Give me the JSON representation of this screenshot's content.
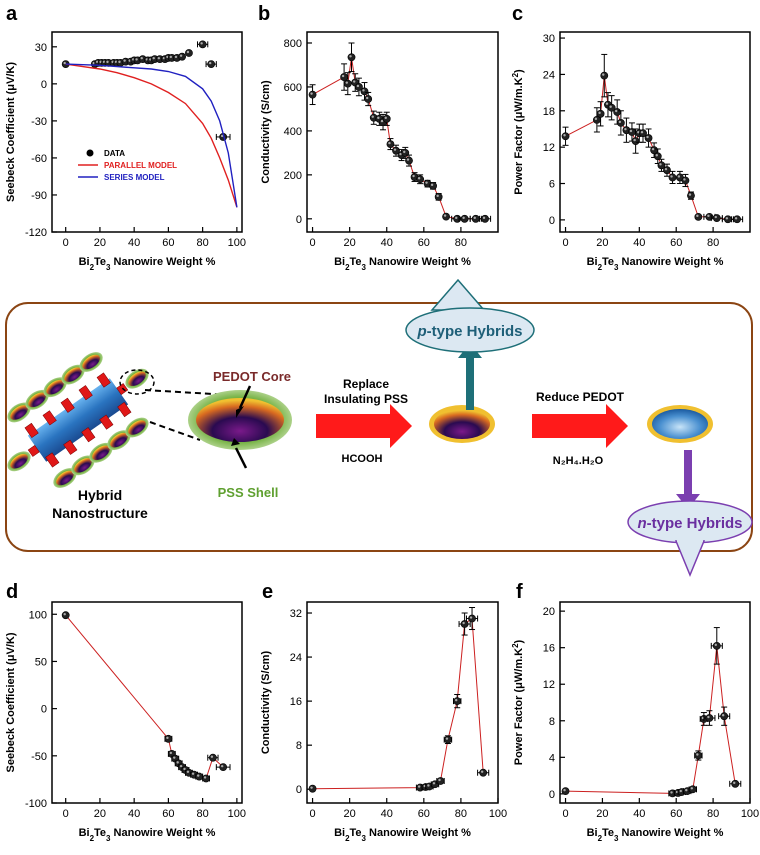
{
  "panel_letters": [
    "a",
    "b",
    "c",
    "d",
    "e",
    "f"
  ],
  "diagram": {
    "pedot_core": "PEDOT Core",
    "pss_shell": "PSS Shell",
    "hybrid_line1": "Hybrid",
    "hybrid_line2": "Nanostructure",
    "replace_line1": "Replace",
    "replace_line2": "Insulating PSS",
    "hcooh": "HCOOH",
    "reduce": "Reduce PEDOT",
    "n2h4": "N₂H₄.H₂O",
    "p_type_prefix": "p",
    "p_type_rest": "-type Hybrids",
    "n_type_prefix": "n",
    "n_type_rest": "-type Hybrids",
    "colors": {
      "frame": "#8B4513",
      "arrow_red": "#FF1A1A",
      "p_arrow": "#1E6F78",
      "n_arrow": "#7B3FB0",
      "bubble_fill": "#DCE8F2",
      "p_text": "#1E5F78",
      "n_text": "#6A2FA0",
      "core_label": "#7A2A2A",
      "shell_label": "#5FA030"
    }
  },
  "chart_data": [
    {
      "id": "a",
      "type": "scatter",
      "ylabel_parts": [
        "Seebeck Coefficient (μV/K)"
      ],
      "xlabel_parts": [
        "Bi",
        "2",
        "Te",
        "3",
        " Nanowire Weight %"
      ],
      "xlim": [
        -8,
        103
      ],
      "ylim": [
        -120,
        42
      ],
      "xticks": [
        0,
        20,
        40,
        60,
        80,
        100
      ],
      "yticks": [
        -120,
        -90,
        -60,
        -30,
        0,
        30
      ],
      "series": [
        {
          "name": "DATA",
          "style": "points",
          "color": "#000000",
          "x": [
            0,
            17,
            19,
            21,
            23,
            25,
            28,
            30,
            32,
            35,
            38,
            40,
            42,
            45,
            48,
            50,
            52,
            55,
            58,
            60,
            62,
            65,
            68,
            72,
            80,
            85,
            92
          ],
          "y": [
            16,
            16,
            17,
            17,
            17,
            17,
            17,
            17,
            17,
            18,
            18,
            19,
            19,
            20,
            19,
            19,
            20,
            20,
            20,
            21,
            21,
            21,
            22,
            25,
            32,
            16,
            -43
          ],
          "xerr": [
            0,
            0,
            0,
            0,
            0,
            0,
            0,
            0,
            0,
            0,
            0,
            0,
            0,
            0,
            0,
            0,
            0,
            0,
            0,
            0,
            0,
            0,
            0,
            0,
            3,
            3,
            4
          ]
        },
        {
          "name": "PARALLEL MODEL",
          "style": "curve",
          "color": "#E02020",
          "x": [
            0,
            10,
            20,
            30,
            40,
            50,
            60,
            70,
            80,
            85,
            90,
            95,
            100
          ],
          "y": [
            16,
            14,
            12,
            9,
            5,
            0,
            -7,
            -16,
            -32,
            -44,
            -60,
            -78,
            -100
          ]
        },
        {
          "name": "SERIES MODEL",
          "style": "curve",
          "color": "#2020C0",
          "x": [
            0,
            10,
            20,
            30,
            40,
            50,
            60,
            70,
            80,
            85,
            90,
            95,
            100
          ],
          "y": [
            16,
            15.5,
            15,
            14,
            13,
            12,
            10,
            6,
            -4,
            -14,
            -30,
            -56,
            -100
          ]
        }
      ],
      "legend_colors": [
        "#E02020",
        "#2020C0"
      ]
    },
    {
      "id": "b",
      "type": "line",
      "ylabel_parts": [
        "Conductivity (S/cm)"
      ],
      "xlabel_parts": [
        "Bi",
        "2",
        "Te",
        "3",
        " Nanowire Weight %"
      ],
      "xlim": [
        -3,
        100
      ],
      "ylim": [
        -60,
        850
      ],
      "xticks": [
        0,
        20,
        40,
        60,
        80
      ],
      "yticks": [
        0,
        200,
        400,
        600,
        800
      ],
      "series": [
        {
          "style": "line-points",
          "color": "#CC2020",
          "x": [
            0,
            17,
            19,
            21,
            23,
            25,
            28,
            30,
            33,
            36,
            38,
            40,
            42,
            45,
            48,
            50,
            52,
            55,
            58,
            62,
            65,
            68,
            72,
            78,
            82,
            88,
            93
          ],
          "y": [
            565,
            645,
            615,
            735,
            620,
            600,
            580,
            545,
            460,
            455,
            440,
            455,
            340,
            310,
            290,
            300,
            265,
            190,
            180,
            160,
            150,
            100,
            10,
            0,
            0,
            0,
            0
          ],
          "yerr": [
            45,
            60,
            50,
            65,
            40,
            40,
            40,
            30,
            30,
            30,
            35,
            30,
            25,
            25,
            25,
            25,
            25,
            20,
            20,
            15,
            15,
            15,
            8,
            0,
            0,
            0,
            0
          ],
          "xerr": [
            0,
            0,
            0,
            0,
            0,
            0,
            0,
            0,
            0,
            0,
            0,
            0,
            0,
            0,
            0,
            0,
            0,
            0,
            0,
            0,
            0,
            0,
            0,
            3,
            3,
            3,
            3
          ]
        }
      ]
    },
    {
      "id": "c",
      "type": "line",
      "ylabel_parts": [
        "Power Factor (μW/m.K",
        "2",
        ")"
      ],
      "xlabel_parts": [
        "Bi",
        "2",
        "Te",
        "3",
        " Nanowire Weight %"
      ],
      "xlim": [
        -3,
        100
      ],
      "ylim": [
        -2,
        31
      ],
      "xticks": [
        0,
        20,
        40,
        60,
        80
      ],
      "yticks": [
        0,
        6,
        12,
        18,
        24,
        30
      ],
      "series": [
        {
          "style": "line-points",
          "color": "#CC2020",
          "x": [
            0,
            17,
            19,
            21,
            23,
            25,
            28,
            30,
            33,
            36,
            38,
            40,
            42,
            45,
            48,
            50,
            52,
            55,
            58,
            62,
            65,
            68,
            72,
            78,
            82,
            88,
            93
          ],
          "y": [
            13.8,
            16.5,
            17.5,
            23.8,
            19,
            18.5,
            17.8,
            16,
            14.8,
            14.5,
            13,
            14.3,
            14.3,
            13.5,
            11.5,
            10.5,
            9,
            8.2,
            7,
            7,
            6.5,
            4,
            0.5,
            0.5,
            0.3,
            0.1,
            0.1
          ],
          "yerr": [
            1.5,
            2,
            2,
            3.5,
            2,
            2,
            2,
            2,
            2,
            1.5,
            2,
            1.5,
            1.5,
            1.5,
            1.2,
            1.2,
            1,
            1,
            1,
            1,
            1,
            0.6,
            0.2,
            0,
            0,
            0,
            0
          ],
          "xerr": [
            0,
            0,
            0,
            0,
            0,
            0,
            0,
            0,
            0,
            0,
            0,
            0,
            0,
            0,
            0,
            0,
            0,
            0,
            0,
            0,
            0,
            0,
            0,
            3,
            3,
            3,
            3
          ]
        }
      ]
    },
    {
      "id": "d",
      "type": "line",
      "ylabel_parts": [
        "Seebeck Coefficient (μV/K)"
      ],
      "xlabel_parts": [
        "Bi",
        "2",
        "Te",
        "3",
        " Nanowire Weight %"
      ],
      "xlim": [
        -8,
        103
      ],
      "ylim": [
        -100,
        113
      ],
      "xticks": [
        0,
        20,
        40,
        60,
        80,
        100
      ],
      "yticks": [
        -100,
        -50,
        0,
        50,
        100
      ],
      "series": [
        {
          "style": "line-points",
          "color": "#CC2020",
          "x": [
            0,
            60,
            62,
            64,
            66,
            68,
            70,
            72,
            75,
            78,
            82,
            86,
            92
          ],
          "y": [
            99,
            -32,
            -48,
            -53,
            -58,
            -62,
            -65,
            -68,
            -70,
            -72,
            -74,
            -52,
            -62
          ],
          "xerr": [
            0,
            2,
            2,
            2,
            2,
            2,
            2,
            2,
            2,
            2,
            2,
            3,
            4
          ]
        }
      ]
    },
    {
      "id": "e",
      "type": "line",
      "ylabel_parts": [
        "Conductivity (S/cm)"
      ],
      "xlabel_parts": [
        "Bi",
        "2",
        "Te",
        "3",
        " Nanowire Weight %"
      ],
      "xlim": [
        -3,
        100
      ],
      "ylim": [
        -2.5,
        34
      ],
      "xticks": [
        0,
        20,
        40,
        60,
        80,
        100
      ],
      "yticks": [
        0,
        8,
        16,
        24,
        32
      ],
      "series": [
        {
          "style": "line-points",
          "color": "#CC2020",
          "x": [
            0,
            58,
            61,
            63,
            66,
            69,
            73,
            78,
            82,
            86,
            92
          ],
          "y": [
            0.1,
            0.3,
            0.4,
            0.5,
            0.9,
            1.5,
            9,
            16,
            30,
            31,
            3
          ],
          "yerr": [
            0,
            0,
            0,
            0,
            0,
            0,
            0.7,
            1.2,
            2,
            2,
            0.3
          ],
          "xerr": [
            0,
            2,
            2,
            2,
            2,
            2,
            2,
            2,
            3,
            3,
            3
          ]
        }
      ]
    },
    {
      "id": "f",
      "type": "line",
      "ylabel_parts": [
        "Power Factor (μW/m.K",
        "2",
        ")"
      ],
      "xlabel_parts": [
        "Bi",
        "2",
        "Te",
        "3",
        " Nanowire Weight %"
      ],
      "xlim": [
        -3,
        100
      ],
      "ylim": [
        -1,
        21
      ],
      "xticks": [
        0,
        20,
        40,
        60,
        80,
        100
      ],
      "yticks": [
        0,
        4,
        8,
        12,
        16,
        20
      ],
      "series": [
        {
          "style": "line-points",
          "color": "#CC2020",
          "x": [
            0,
            58,
            61,
            63,
            66,
            69,
            72,
            75,
            78,
            82,
            86,
            92
          ],
          "y": [
            0.3,
            0.05,
            0.1,
            0.2,
            0.3,
            0.5,
            4.2,
            8.2,
            8.3,
            16.2,
            8.5,
            1.1
          ],
          "yerr": [
            0,
            0,
            0,
            0,
            0,
            0,
            0.5,
            0.7,
            0.8,
            2,
            1,
            0.2
          ],
          "xerr": [
            0,
            2,
            2,
            2,
            2,
            2,
            2,
            2,
            3,
            3,
            3,
            3
          ]
        }
      ]
    }
  ]
}
